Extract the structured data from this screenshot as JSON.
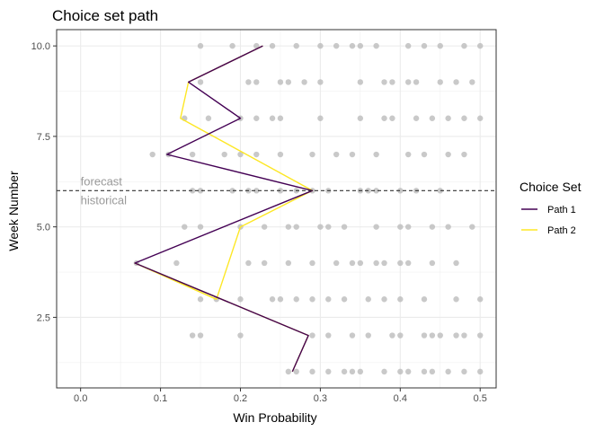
{
  "chart_data": {
    "type": "scatter",
    "title": "Choice set path",
    "xlabel": "Win Probability",
    "ylabel": "Week Number",
    "xlim": [
      -0.03,
      0.52
    ],
    "ylim": [
      0.55,
      10.45
    ],
    "x_ticks": [
      "0.0",
      "0.1",
      "0.2",
      "0.3",
      "0.4",
      "0.5"
    ],
    "x_tick_values": [
      0,
      0.1,
      0.2,
      0.3,
      0.4,
      0.5
    ],
    "y_ticks": [
      "2.5",
      "5.0",
      "7.5",
      "10.0"
    ],
    "y_tick_values": [
      2.5,
      5.0,
      7.5,
      10.0
    ],
    "grid": true,
    "hline": {
      "y": 6,
      "style": "dashed",
      "color": "#333333"
    },
    "annotations": [
      {
        "text": "forecast",
        "x": 0.0,
        "y": 6.25
      },
      {
        "text": "historical",
        "x": 0.0,
        "y": 5.72
      }
    ],
    "legend": {
      "title": "Choice Set",
      "position": "right"
    },
    "points_color": "#bbbbbb",
    "background_points": [
      {
        "week": 10,
        "x": [
          0.15,
          0.19,
          0.22,
          0.24,
          0.27,
          0.3,
          0.32,
          0.34,
          0.35,
          0.37,
          0.41,
          0.43,
          0.45,
          0.48,
          0.5
        ]
      },
      {
        "week": 9,
        "x": [
          0.15,
          0.21,
          0.22,
          0.25,
          0.26,
          0.28,
          0.3,
          0.35,
          0.38,
          0.39,
          0.41,
          0.42,
          0.45,
          0.47,
          0.49
        ]
      },
      {
        "week": 8,
        "x": [
          0.13,
          0.16,
          0.2,
          0.22,
          0.24,
          0.25,
          0.3,
          0.35,
          0.38,
          0.39,
          0.42,
          0.44,
          0.46,
          0.48,
          0.5
        ]
      },
      {
        "week": 7,
        "x": [
          0.09,
          0.11,
          0.14,
          0.18,
          0.2,
          0.22,
          0.25,
          0.29,
          0.32,
          0.34,
          0.37,
          0.41,
          0.43,
          0.46,
          0.48
        ]
      },
      {
        "week": 6,
        "x": [
          0.14,
          0.15,
          0.19,
          0.21,
          0.22,
          0.25,
          0.27,
          0.29,
          0.31,
          0.35,
          0.36,
          0.37,
          0.4,
          0.42,
          0.45
        ]
      },
      {
        "week": 5,
        "x": [
          0.13,
          0.15,
          0.2,
          0.23,
          0.26,
          0.27,
          0.3,
          0.31,
          0.33,
          0.37,
          0.4,
          0.41,
          0.44,
          0.46,
          0.49
        ]
      },
      {
        "week": 4,
        "x": [
          0.07,
          0.12,
          0.21,
          0.23,
          0.26,
          0.29,
          0.32,
          0.34,
          0.35,
          0.37,
          0.38,
          0.4,
          0.41,
          0.44,
          0.47
        ]
      },
      {
        "week": 3,
        "x": [
          0.15,
          0.17,
          0.2,
          0.24,
          0.25,
          0.27,
          0.29,
          0.31,
          0.33,
          0.36,
          0.38,
          0.4,
          0.43,
          0.47,
          0.5
        ]
      },
      {
        "week": 2,
        "x": [
          0.14,
          0.15,
          0.2,
          0.29,
          0.31,
          0.34,
          0.36,
          0.39,
          0.4,
          0.43,
          0.44,
          0.45,
          0.47,
          0.48,
          0.5
        ]
      },
      {
        "week": 1,
        "x": [
          0.26,
          0.27,
          0.29,
          0.31,
          0.33,
          0.34,
          0.35,
          0.38,
          0.4,
          0.41,
          0.43,
          0.44,
          0.46,
          0.48,
          0.5
        ]
      }
    ],
    "series": [
      {
        "name": "Path 1",
        "color": "#440154",
        "x": [
          0.265,
          0.285,
          0.068,
          0.29,
          0.108,
          0.2,
          0.135,
          0.228
        ],
        "y": [
          1,
          2,
          4,
          6,
          7,
          8,
          9,
          10
        ]
      },
      {
        "name": "Path 2",
        "color": "#FDE725",
        "x": [
          0.265,
          0.285,
          0.068,
          0.17,
          0.2,
          0.29,
          0.125,
          0.135,
          0.228
        ],
        "y": [
          1,
          2,
          4,
          3,
          5,
          6,
          8,
          9,
          10
        ]
      }
    ]
  }
}
